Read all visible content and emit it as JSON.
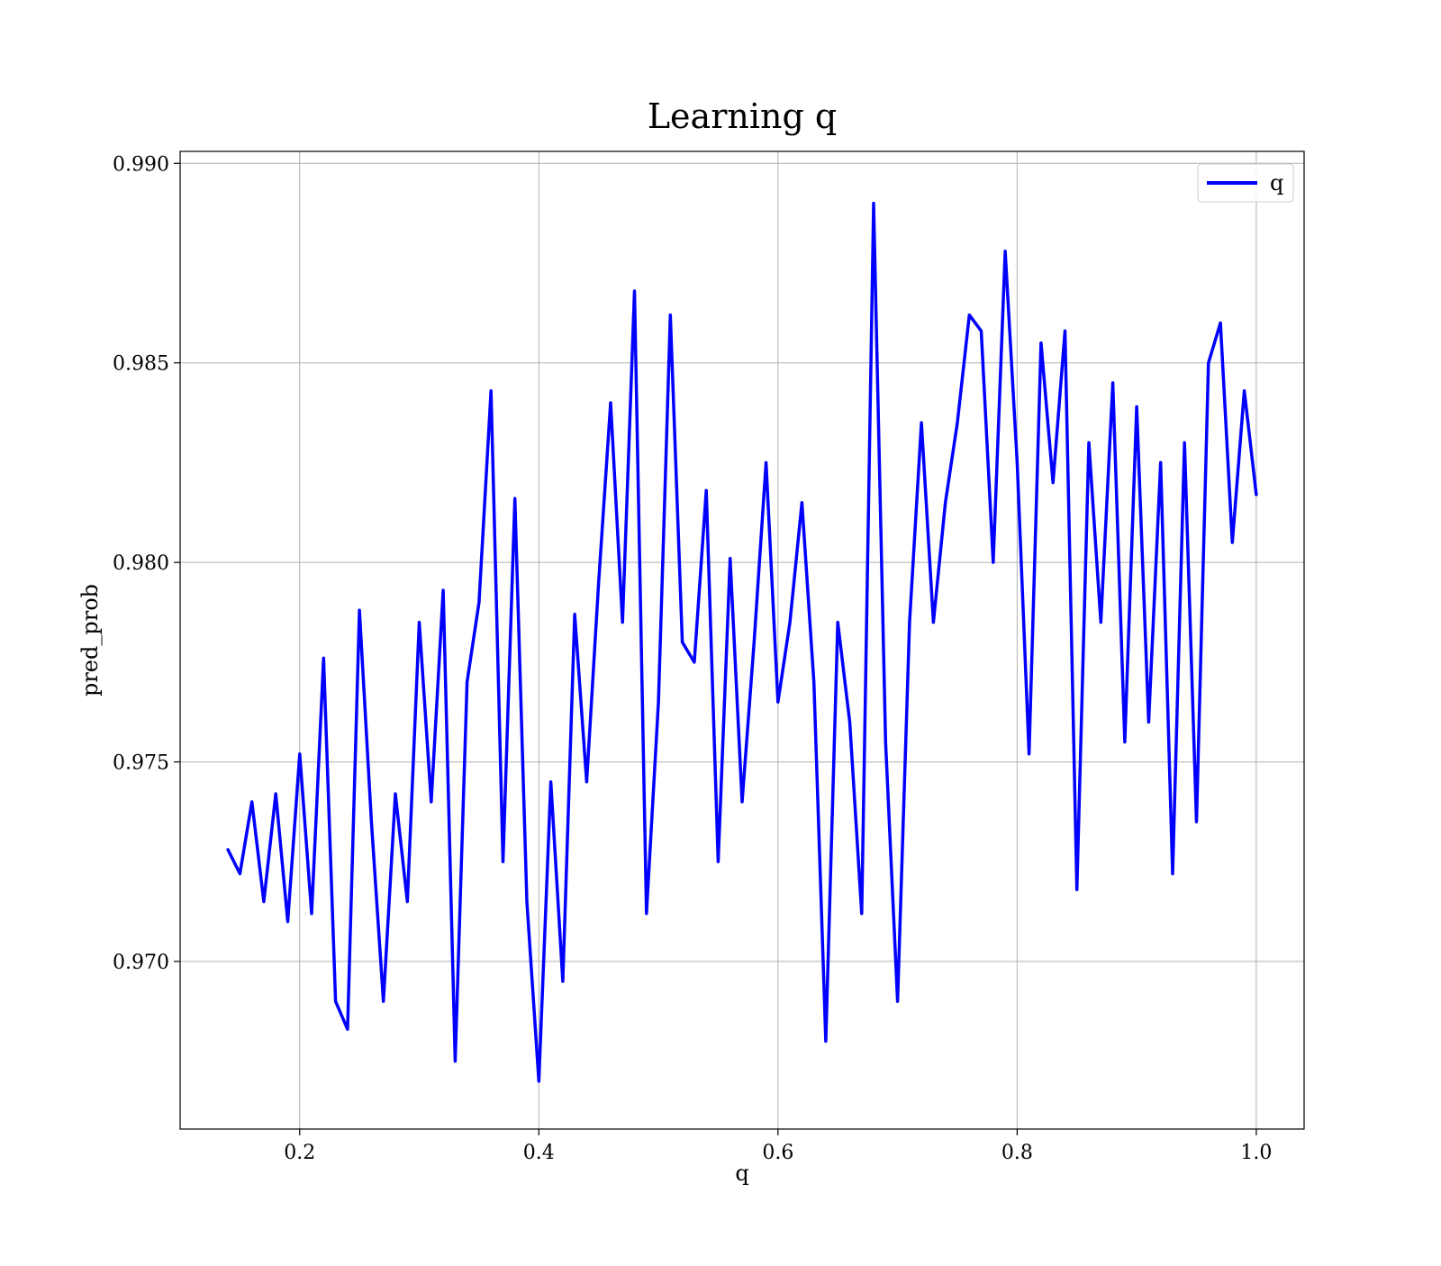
{
  "chart_data": {
    "type": "line",
    "title": "Learning q",
    "xlabel": "q",
    "ylabel": "pred_prob",
    "xlim": [
      0.1,
      1.04
    ],
    "ylim": [
      0.9658,
      0.9903
    ],
    "xticks": [
      0.2,
      0.4,
      0.6,
      0.8,
      1.0
    ],
    "xtick_labels": [
      "0.2",
      "0.4",
      "0.6",
      "0.8",
      "1.0"
    ],
    "yticks": [
      0.97,
      0.975,
      0.98,
      0.985,
      0.99
    ],
    "ytick_labels": [
      "0.970",
      "0.975",
      "0.980",
      "0.985",
      "0.990"
    ],
    "grid": true,
    "legend_position": "top-right",
    "series": [
      {
        "name": "q",
        "color": "#0000ff",
        "x": [
          0.14,
          0.15,
          0.16,
          0.17,
          0.18,
          0.19,
          0.2,
          0.21,
          0.22,
          0.23,
          0.24,
          0.25,
          0.26,
          0.27,
          0.28,
          0.29,
          0.3,
          0.31,
          0.32,
          0.33,
          0.34,
          0.35,
          0.36,
          0.37,
          0.38,
          0.39,
          0.4,
          0.41,
          0.42,
          0.43,
          0.44,
          0.45,
          0.46,
          0.47,
          0.48,
          0.49,
          0.5,
          0.51,
          0.52,
          0.53,
          0.54,
          0.55,
          0.56,
          0.57,
          0.58,
          0.59,
          0.6,
          0.61,
          0.62,
          0.63,
          0.64,
          0.65,
          0.66,
          0.67,
          0.68,
          0.69,
          0.7,
          0.71,
          0.72,
          0.73,
          0.74,
          0.75,
          0.76,
          0.77,
          0.78,
          0.79,
          0.8,
          0.81,
          0.82,
          0.83,
          0.84,
          0.85,
          0.86,
          0.87,
          0.88,
          0.89,
          0.9,
          0.91,
          0.92,
          0.93,
          0.94,
          0.95,
          0.96,
          0.97,
          0.98,
          0.99,
          1.0
        ],
        "y": [
          0.9728,
          0.9722,
          0.974,
          0.9715,
          0.9742,
          0.971,
          0.9752,
          0.9712,
          0.9776,
          0.969,
          0.9683,
          0.9788,
          0.9735,
          0.969,
          0.9742,
          0.9715,
          0.9785,
          0.974,
          0.9793,
          0.9675,
          0.977,
          0.979,
          0.9843,
          0.9725,
          0.9816,
          0.9715,
          0.967,
          0.9745,
          0.9695,
          0.9787,
          0.9745,
          0.9795,
          0.984,
          0.9785,
          0.9868,
          0.9712,
          0.9765,
          0.9862,
          0.978,
          0.9775,
          0.9818,
          0.9725,
          0.9801,
          0.974,
          0.978,
          0.9825,
          0.9765,
          0.9785,
          0.9815,
          0.977,
          0.968,
          0.9785,
          0.976,
          0.9712,
          0.989,
          0.9755,
          0.969,
          0.9785,
          0.9835,
          0.9785,
          0.9815,
          0.9835,
          0.9862,
          0.9858,
          0.98,
          0.9878,
          0.9825,
          0.9752,
          0.9855,
          0.982,
          0.9858,
          0.9718,
          0.983,
          0.9785,
          0.9845,
          0.9755,
          0.9839,
          0.976,
          0.9825,
          0.9722,
          0.983,
          0.9735,
          0.985,
          0.986,
          0.9805,
          0.9843,
          0.9817
        ]
      }
    ]
  }
}
